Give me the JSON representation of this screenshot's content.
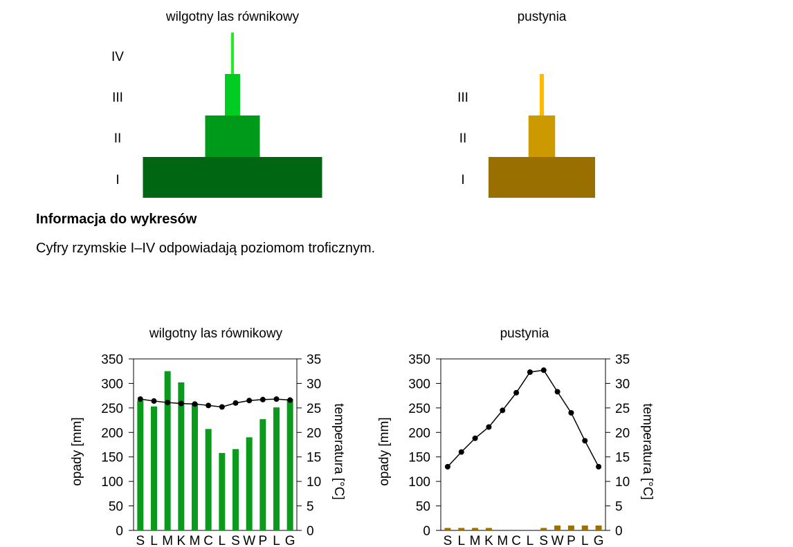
{
  "info": {
    "title": "Informacja do wykresów",
    "text": "Cyfry rzymskie I–IV odpowiadają poziomom troficznym."
  },
  "pyramids": [
    {
      "title": "wilgotny las równikowy",
      "levels": [
        {
          "label": "I",
          "relative_width": 1.0,
          "color": "#006611"
        },
        {
          "label": "II",
          "relative_width": 0.305,
          "color": "#009a1a"
        },
        {
          "label": "III",
          "relative_width": 0.085,
          "color": "#00cc22"
        },
        {
          "label": "IV",
          "relative_width": 0.016,
          "color": "#22ee22"
        }
      ]
    },
    {
      "title": "pustynia",
      "levels": [
        {
          "label": "I",
          "relative_width": 1.0,
          "color": "#997000"
        },
        {
          "label": "II",
          "relative_width": 0.25,
          "color": "#cc9900"
        },
        {
          "label": "III",
          "relative_width": 0.04,
          "color": "#ffbb00"
        }
      ]
    }
  ],
  "chart_data": [
    {
      "type": "bar",
      "title": "wilgotny las równikowy",
      "categories": [
        "S",
        "L",
        "M",
        "K",
        "M",
        "C",
        "L",
        "S",
        "W",
        "P",
        "L",
        "G"
      ],
      "series": [
        {
          "kind": "bar",
          "axis": "left",
          "color": "#0a9a1c",
          "values": [
            265,
            253,
            325,
            302,
            260,
            207,
            158,
            166,
            190,
            227,
            251,
            268
          ]
        },
        {
          "kind": "line",
          "axis": "right",
          "color": "#000000",
          "values": [
            26.8,
            26.4,
            26.1,
            25.9,
            25.8,
            25.5,
            25.2,
            26.0,
            26.5,
            26.7,
            26.8,
            26.6
          ]
        }
      ],
      "ylabel": "opady [mm]",
      "y2label": "temperatura [°C]",
      "ylim": [
        0,
        350
      ],
      "y2lim": [
        0,
        35
      ],
      "yticks": [
        0,
        50,
        100,
        150,
        200,
        250,
        300,
        350
      ],
      "y2ticks": [
        0,
        5,
        10,
        15,
        20,
        25,
        30,
        35
      ]
    },
    {
      "type": "bar",
      "title": "pustynia",
      "categories": [
        "S",
        "L",
        "M",
        "K",
        "M",
        "C",
        "L",
        "S",
        "W",
        "P",
        "L",
        "G"
      ],
      "series": [
        {
          "kind": "bar",
          "axis": "left",
          "color": "#9a7000",
          "values": [
            5,
            5,
            5,
            5,
            0,
            0,
            0,
            5,
            10,
            10,
            10,
            10
          ]
        },
        {
          "kind": "line",
          "axis": "right",
          "color": "#000000",
          "values": [
            13.0,
            16.0,
            18.8,
            21.1,
            24.5,
            28.1,
            32.3,
            32.7,
            28.3,
            24.0,
            18.3,
            13.0
          ]
        }
      ],
      "ylabel": "opady [mm]",
      "y2label": "temperatura [°C]",
      "ylim": [
        0,
        350
      ],
      "y2lim": [
        0,
        35
      ],
      "yticks": [
        0,
        50,
        100,
        150,
        200,
        250,
        300,
        350
      ],
      "y2ticks": [
        0,
        5,
        10,
        15,
        20,
        25,
        30,
        35
      ]
    }
  ]
}
